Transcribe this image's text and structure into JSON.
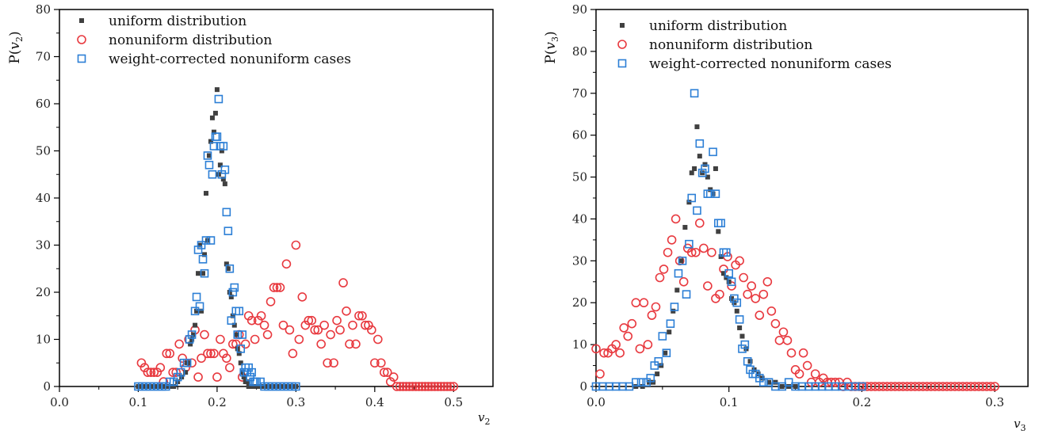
{
  "colors": {
    "uniform": "#404040",
    "nonuniform": "#e8393f",
    "weighted": "#2c7fd6",
    "axis": "#000000"
  },
  "chart_data": [
    {
      "type": "scatter",
      "xlabel": "v2",
      "xlabel_main": "v",
      "xlabel_sub": "2",
      "ylabel": "P(v2)",
      "ylabel_prefix": "P(",
      "ylabel_var": "v",
      "ylabel_sub": "2",
      "ylabel_suffix": ")",
      "xlim": [
        0.0,
        0.55
      ],
      "ylim": [
        0,
        80
      ],
      "xticks": [
        0.0,
        0.1,
        0.2,
        0.3,
        0.4,
        0.5
      ],
      "xtick_labels": [
        "0.0",
        "0.1",
        "0.2",
        "0.3",
        "0.4",
        "0.5"
      ],
      "yticks": [
        0,
        10,
        20,
        30,
        40,
        50,
        60,
        70,
        80
      ],
      "ytick_labels": [
        "0",
        "10",
        "20",
        "30",
        "40",
        "50",
        "60",
        "70",
        "80"
      ],
      "legend": [
        "uniform distribution",
        "nonuniform distribution",
        "weight-corrected nonuniform cases"
      ],
      "legend_position": "top-left",
      "series": [
        {
          "name": "uniform distribution",
          "marker": "filled-square",
          "x": [
            0.1,
            0.105,
            0.11,
            0.115,
            0.12,
            0.125,
            0.13,
            0.135,
            0.14,
            0.145,
            0.15,
            0.155,
            0.16,
            0.162,
            0.164,
            0.166,
            0.168,
            0.17,
            0.172,
            0.174,
            0.176,
            0.178,
            0.18,
            0.182,
            0.184,
            0.186,
            0.188,
            0.19,
            0.192,
            0.194,
            0.196,
            0.198,
            0.2,
            0.202,
            0.204,
            0.206,
            0.208,
            0.21,
            0.212,
            0.214,
            0.216,
            0.218,
            0.22,
            0.222,
            0.224,
            0.226,
            0.228,
            0.23,
            0.232,
            0.234,
            0.236,
            0.238,
            0.24,
            0.245,
            0.25,
            0.255,
            0.26,
            0.265,
            0.27,
            0.275,
            0.28,
            0.285,
            0.29,
            0.295,
            0.3
          ],
          "y": [
            0,
            0,
            0,
            0,
            0,
            0,
            0,
            0,
            0,
            0,
            1,
            2,
            3,
            5,
            5,
            9,
            10,
            11,
            13,
            16,
            24,
            30,
            16,
            24,
            28,
            41,
            31,
            49,
            52,
            57,
            54,
            58,
            63,
            45,
            47,
            50,
            44,
            43,
            26,
            25,
            20,
            19,
            15,
            13,
            11,
            8,
            7,
            5,
            3,
            2,
            1,
            1,
            0,
            0,
            0,
            0,
            0,
            0,
            0,
            0,
            0,
            0,
            0,
            0,
            0
          ]
        },
        {
          "name": "nonuniform distribution",
          "marker": "open-circle",
          "x": [
            0.104,
            0.108,
            0.112,
            0.116,
            0.12,
            0.124,
            0.128,
            0.132,
            0.136,
            0.14,
            0.144,
            0.148,
            0.152,
            0.156,
            0.16,
            0.164,
            0.168,
            0.172,
            0.176,
            0.18,
            0.184,
            0.188,
            0.192,
            0.196,
            0.2,
            0.204,
            0.208,
            0.212,
            0.216,
            0.22,
            0.224,
            0.228,
            0.232,
            0.236,
            0.24,
            0.244,
            0.248,
            0.252,
            0.256,
            0.26,
            0.264,
            0.268,
            0.272,
            0.276,
            0.28,
            0.284,
            0.288,
            0.292,
            0.296,
            0.3,
            0.304,
            0.308,
            0.312,
            0.316,
            0.32,
            0.324,
            0.328,
            0.332,
            0.336,
            0.34,
            0.344,
            0.348,
            0.352,
            0.356,
            0.36,
            0.364,
            0.368,
            0.372,
            0.376,
            0.38,
            0.384,
            0.388,
            0.392,
            0.396,
            0.4,
            0.404,
            0.408,
            0.412,
            0.416,
            0.42,
            0.424,
            0.428,
            0.432,
            0.436,
            0.44,
            0.444,
            0.448,
            0.452,
            0.456,
            0.46,
            0.464,
            0.468,
            0.472,
            0.476,
            0.48,
            0.484,
            0.488,
            0.492,
            0.496,
            0.5
          ],
          "y": [
            5,
            4,
            3,
            3,
            3,
            3,
            4,
            1,
            7,
            7,
            3,
            3,
            9,
            6,
            4,
            10,
            5,
            12,
            2,
            6,
            11,
            7,
            7,
            7,
            2,
            10,
            7,
            6,
            4,
            9,
            9,
            11,
            2,
            9,
            15,
            14,
            10,
            14,
            15,
            13,
            11,
            18,
            21,
            21,
            21,
            13,
            26,
            12,
            7,
            30,
            10,
            19,
            13,
            14,
            14,
            12,
            12,
            9,
            13,
            5,
            11,
            5,
            14,
            12,
            22,
            16,
            9,
            13,
            9,
            15,
            15,
            13,
            13,
            12,
            5,
            10,
            5,
            3,
            3,
            1,
            2,
            0,
            0,
            0,
            0,
            0,
            0,
            0,
            0,
            0,
            0,
            0,
            0,
            0,
            0,
            0,
            0,
            0,
            0,
            0
          ]
        },
        {
          "name": "weight-corrected nonuniform cases",
          "marker": "open-square",
          "x": [
            0.1,
            0.105,
            0.11,
            0.115,
            0.12,
            0.125,
            0.13,
            0.135,
            0.14,
            0.145,
            0.15,
            0.154,
            0.158,
            0.162,
            0.165,
            0.168,
            0.172,
            0.174,
            0.176,
            0.178,
            0.18,
            0.182,
            0.184,
            0.186,
            0.188,
            0.19,
            0.192,
            0.194,
            0.196,
            0.198,
            0.2,
            0.202,
            0.204,
            0.206,
            0.208,
            0.21,
            0.212,
            0.214,
            0.216,
            0.218,
            0.22,
            0.222,
            0.224,
            0.226,
            0.228,
            0.23,
            0.232,
            0.234,
            0.236,
            0.238,
            0.24,
            0.242,
            0.244,
            0.246,
            0.248,
            0.25,
            0.255,
            0.26,
            0.265,
            0.27,
            0.275,
            0.28,
            0.285,
            0.29,
            0.295,
            0.3
          ],
          "y": [
            0,
            0,
            0,
            0,
            0,
            0,
            0,
            0,
            1,
            1,
            2,
            3,
            5,
            5,
            10,
            11,
            16,
            19,
            29,
            17,
            30,
            27,
            24,
            31,
            49,
            47,
            31,
            45,
            51,
            53,
            53,
            61,
            51,
            45,
            51,
            46,
            37,
            33,
            25,
            14,
            20,
            21,
            16,
            11,
            16,
            8,
            11,
            3,
            4,
            3,
            4,
            2,
            3,
            1,
            1,
            1,
            1,
            0,
            0,
            0,
            0,
            0,
            0,
            0,
            0,
            0
          ]
        }
      ]
    },
    {
      "type": "scatter",
      "xlabel": "v3",
      "xlabel_main": "v",
      "xlabel_sub": "3",
      "ylabel": "P(v3)",
      "ylabel_prefix": "P(",
      "ylabel_var": "v",
      "ylabel_sub": "3",
      "ylabel_suffix": ")",
      "xlim": [
        0.0,
        0.325
      ],
      "ylim": [
        0,
        90
      ],
      "xticks": [
        0.0,
        0.1,
        0.2,
        0.3
      ],
      "xtick_labels": [
        "0.0",
        "0.1",
        "0.2",
        "0.3"
      ],
      "yticks": [
        0,
        10,
        20,
        30,
        40,
        50,
        60,
        70,
        80,
        90
      ],
      "ytick_labels": [
        "0",
        "10",
        "20",
        "30",
        "40",
        "50",
        "60",
        "70",
        "80",
        "90"
      ],
      "legend": [
        "uniform distribution",
        "nonuniform distribution",
        "weight-corrected nonuniform cases"
      ],
      "legend_position": "top-left",
      "series": [
        {
          "name": "uniform distribution",
          "marker": "filled-square",
          "x": [
            0.03,
            0.035,
            0.04,
            0.043,
            0.046,
            0.049,
            0.052,
            0.055,
            0.058,
            0.061,
            0.064,
            0.067,
            0.07,
            0.072,
            0.074,
            0.076,
            0.078,
            0.08,
            0.082,
            0.084,
            0.086,
            0.088,
            0.09,
            0.092,
            0.094,
            0.096,
            0.098,
            0.1,
            0.102,
            0.104,
            0.106,
            0.108,
            0.11,
            0.113,
            0.116,
            0.119,
            0.122,
            0.125,
            0.13,
            0.135,
            0.14,
            0.145,
            0.15
          ],
          "y": [
            0,
            0,
            1,
            1,
            3,
            5,
            8,
            13,
            18,
            23,
            30,
            38,
            44,
            51,
            52,
            62,
            55,
            51,
            53,
            50,
            47,
            46,
            52,
            37,
            31,
            27,
            26,
            25,
            21,
            20,
            18,
            14,
            12,
            9,
            6,
            4,
            3,
            2,
            1,
            1,
            0,
            0,
            0
          ]
        },
        {
          "name": "nonuniform distribution",
          "marker": "open-circle",
          "x": [
            0.0,
            0.003,
            0.006,
            0.009,
            0.012,
            0.015,
            0.018,
            0.021,
            0.024,
            0.027,
            0.03,
            0.033,
            0.036,
            0.039,
            0.042,
            0.045,
            0.048,
            0.051,
            0.054,
            0.057,
            0.06,
            0.063,
            0.066,
            0.069,
            0.072,
            0.075,
            0.078,
            0.081,
            0.084,
            0.087,
            0.09,
            0.093,
            0.096,
            0.099,
            0.102,
            0.105,
            0.108,
            0.111,
            0.114,
            0.117,
            0.12,
            0.123,
            0.126,
            0.129,
            0.132,
            0.135,
            0.138,
            0.141,
            0.144,
            0.147,
            0.15,
            0.153,
            0.156,
            0.159,
            0.162,
            0.165,
            0.168,
            0.171,
            0.174,
            0.177,
            0.18,
            0.183,
            0.186,
            0.189,
            0.192,
            0.195,
            0.198,
            0.201,
            0.204,
            0.207,
            0.21,
            0.213,
            0.216,
            0.219,
            0.222,
            0.225,
            0.228,
            0.231,
            0.234,
            0.237,
            0.24,
            0.243,
            0.246,
            0.249,
            0.252,
            0.255,
            0.258,
            0.261,
            0.264,
            0.267,
            0.27,
            0.273,
            0.276,
            0.279,
            0.282,
            0.285,
            0.288,
            0.291,
            0.294,
            0.297,
            0.3
          ],
          "y": [
            9,
            3,
            8,
            8,
            9,
            10,
            8,
            14,
            12,
            15,
            20,
            9,
            20,
            10,
            17,
            19,
            26,
            28,
            32,
            35,
            40,
            30,
            25,
            33,
            32,
            32,
            39,
            33,
            24,
            32,
            21,
            22,
            28,
            31,
            24,
            29,
            30,
            26,
            22,
            24,
            21,
            17,
            22,
            25,
            18,
            15,
            11,
            13,
            11,
            8,
            4,
            3,
            8,
            5,
            1,
            3,
            1,
            2,
            1,
            1,
            1,
            1,
            0,
            1,
            0,
            0,
            0,
            0,
            0,
            0,
            0,
            0,
            0,
            0,
            0,
            0,
            0,
            0,
            0,
            0,
            0,
            0,
            0,
            0,
            0,
            0,
            0,
            0,
            0,
            0,
            0,
            0,
            0,
            0,
            0,
            0,
            0,
            0,
            0,
            0,
            0
          ]
        },
        {
          "name": "weight-corrected nonuniform cases",
          "marker": "open-square",
          "x": [
            0.0,
            0.005,
            0.01,
            0.015,
            0.02,
            0.025,
            0.03,
            0.034,
            0.038,
            0.041,
            0.044,
            0.047,
            0.05,
            0.053,
            0.056,
            0.059,
            0.062,
            0.065,
            0.068,
            0.07,
            0.072,
            0.074,
            0.076,
            0.078,
            0.08,
            0.082,
            0.084,
            0.086,
            0.088,
            0.09,
            0.092,
            0.094,
            0.096,
            0.098,
            0.1,
            0.102,
            0.104,
            0.106,
            0.108,
            0.11,
            0.112,
            0.114,
            0.116,
            0.118,
            0.12,
            0.123,
            0.126,
            0.13,
            0.135,
            0.14,
            0.145,
            0.15,
            0.155,
            0.16,
            0.165,
            0.17,
            0.175,
            0.18,
            0.185,
            0.19,
            0.195,
            0.2
          ],
          "y": [
            0,
            0,
            0,
            0,
            0,
            0,
            1,
            1,
            1,
            2,
            5,
            6,
            12,
            8,
            15,
            19,
            27,
            30,
            22,
            34,
            45,
            70,
            42,
            58,
            51,
            52,
            46,
            46,
            56,
            46,
            39,
            39,
            32,
            32,
            27,
            25,
            21,
            20,
            16,
            9,
            10,
            6,
            4,
            3,
            3,
            2,
            1,
            1,
            0,
            0,
            1,
            0,
            0,
            0,
            0,
            0,
            0,
            0,
            0,
            0,
            0,
            0
          ]
        }
      ]
    }
  ]
}
